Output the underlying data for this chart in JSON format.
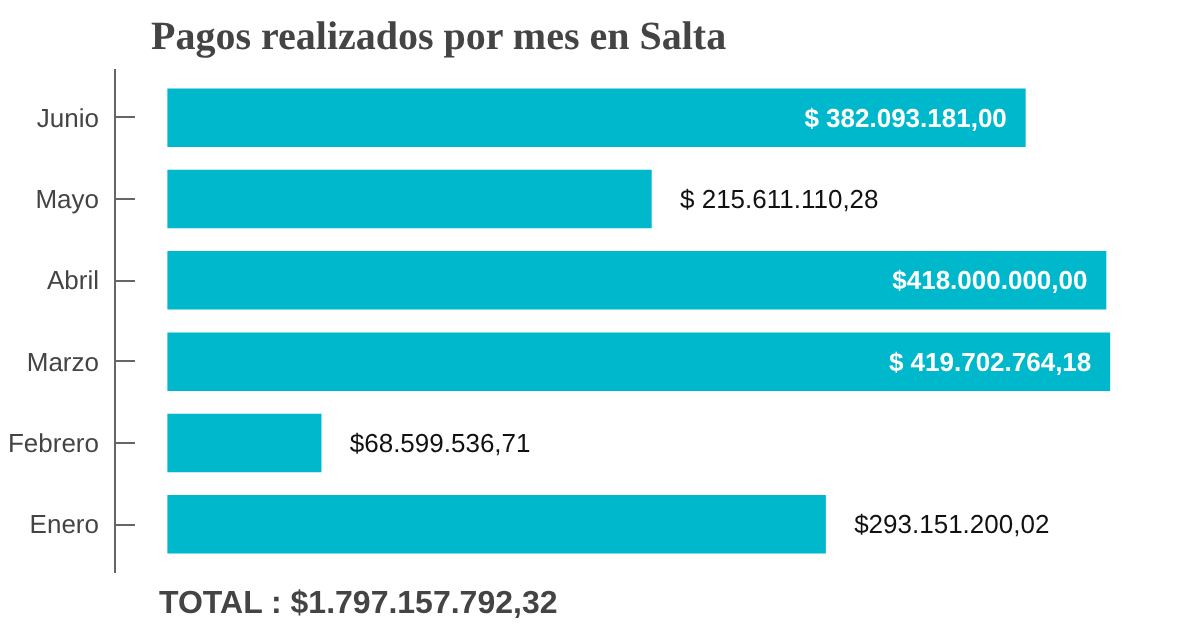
{
  "chart_data": {
    "type": "bar",
    "orientation": "horizontal",
    "title": "Pagos realizados por mes en Salta",
    "categories": [
      "Junio",
      "Mayo",
      "Abril",
      "Marzo",
      "Febrero",
      "Enero"
    ],
    "values": [
      382093181.0,
      215611110.28,
      418000000.0,
      419702764.18,
      68599536.71,
      293151200.02
    ],
    "value_labels": [
      "$ 382.093.181,00",
      "$ 215.611.110,28",
      "$418.000.000,00",
      "$ 419.702.764,18",
      "$68.599.536,71",
      "$293.151.200,02"
    ],
    "color": "#00b8cc",
    "annotations": [
      "TOTAL : $1.797.157.792,32"
    ]
  }
}
